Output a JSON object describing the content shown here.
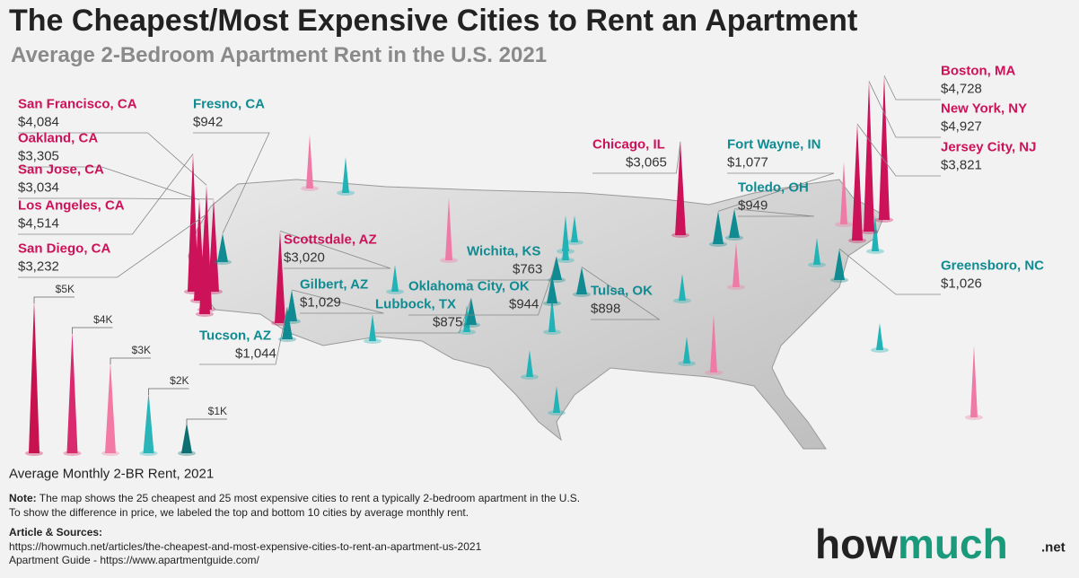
{
  "title": "The Cheapest/Most Expensive Cities to Rent an Apartment",
  "subtitle": "Average 2-Bedroom Apartment Rent in the U.S. 2021",
  "expensive_color": "#cc1259",
  "cheap_color": "#0f8b91",
  "cities": [
    {
      "name": "San Francisco, CA",
      "rent": "$4,084",
      "group": "expensive"
    },
    {
      "name": "Oakland, CA",
      "rent": "$3,305",
      "group": "expensive"
    },
    {
      "name": "San Jose, CA",
      "rent": "$3,034",
      "group": "expensive"
    },
    {
      "name": "Los Angeles, CA",
      "rent": "$4,514",
      "group": "expensive"
    },
    {
      "name": "San Diego, CA",
      "rent": "$3,232",
      "group": "expensive"
    },
    {
      "name": "Fresno, CA",
      "rent": "$942",
      "group": "cheap"
    },
    {
      "name": "Scottsdale, AZ",
      "rent": "$3,020",
      "group": "expensive"
    },
    {
      "name": "Gilbert, AZ",
      "rent": "$1,029",
      "group": "cheap"
    },
    {
      "name": "Tucson, AZ",
      "rent": "$1,044",
      "group": "cheap"
    },
    {
      "name": "Lubbock, TX",
      "rent": "$875",
      "group": "cheap"
    },
    {
      "name": "Wichita, KS",
      "rent": "$763",
      "group": "cheap"
    },
    {
      "name": "Oklahoma City, OK",
      "rent": "$944",
      "group": "cheap"
    },
    {
      "name": "Tulsa, OK",
      "rent": "$898",
      "group": "cheap"
    },
    {
      "name": "Chicago, IL",
      "rent": "$3,065",
      "group": "expensive"
    },
    {
      "name": "Fort Wayne, IN",
      "rent": "$1,077",
      "group": "cheap"
    },
    {
      "name": "Toledo, OH",
      "rent": "$949",
      "group": "cheap"
    },
    {
      "name": "Boston, MA",
      "rent": "$4,728",
      "group": "expensive"
    },
    {
      "name": "New York, NY",
      "rent": "$4,927",
      "group": "expensive"
    },
    {
      "name": "Jersey City, NJ",
      "rent": "$3,821",
      "group": "expensive"
    },
    {
      "name": "Greensboro, NC",
      "rent": "$1,026",
      "group": "cheap"
    }
  ],
  "legend": {
    "title": "Average Monthly 2-BR Rent, 2021",
    "levels": [
      "$5K",
      "$4K",
      "$3K",
      "$2K",
      "$1K"
    ],
    "colors": [
      "#c8124f",
      "#d92a6e",
      "#f27aa5",
      "#2ab5b8",
      "#0e6f72"
    ]
  },
  "note": {
    "label": "Note:",
    "lines": [
      "The map shows the 25 cheapest and 25 most expensive cities to rent a typically 2-bedroom apartment in the U.S.",
      "To show the difference in price, we labeled the top and bottom 10 cities by average monthly rent."
    ]
  },
  "sources": {
    "label": "Article & Sources:",
    "lines": [
      "https://howmuch.net/articles/the-cheapest-and-most-expensive-cities-to-rent-an-apartment-us-2021",
      "Apartment Guide - https://www.apartmentguide.com/"
    ]
  },
  "logo": {
    "part1": "how",
    "part2": "much",
    "part3": ".net"
  }
}
